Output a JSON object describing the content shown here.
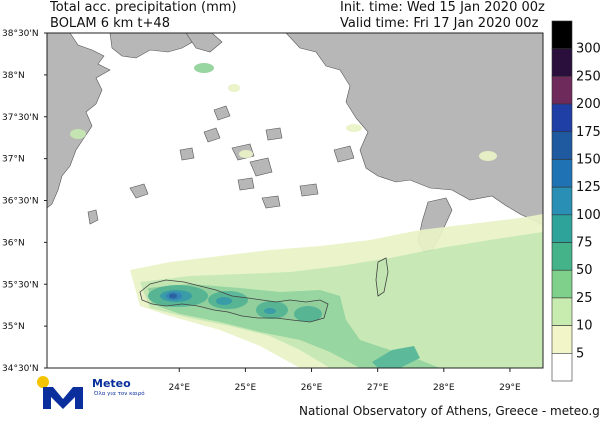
{
  "header": {
    "title_line1": "Total acc. precipitation (mm)",
    "title_line2": "BOLAM 6 km t+48",
    "init_time": "Init. time: Wed 15 Jan 2020 00z",
    "valid_time": "Valid time: Fri 17 Jan 2020 00z"
  },
  "map": {
    "lat_labels": [
      "38°30'N",
      "38°N",
      "37°30'N",
      "37°N",
      "36°30'N",
      "36°N",
      "35°30'N",
      "35°N",
      "34°30'N"
    ],
    "lon_labels": [
      "24°E",
      "25°E",
      "26°E",
      "27°E",
      "28°E",
      "29°E"
    ],
    "lat_range": [
      34.5,
      38.5
    ],
    "lon_range": [
      22.0,
      29.5
    ]
  },
  "colorbar": {
    "levels": [
      "300",
      "250",
      "200",
      "175",
      "150",
      "125",
      "100",
      "75",
      "50",
      "25",
      "10",
      "5"
    ],
    "colors": [
      "#000000",
      "#2a0f3c",
      "#6e2a5a",
      "#1f3fa6",
      "#1f5aa0",
      "#1f73b5",
      "#2a8fb5",
      "#2ea39a",
      "#44b38a",
      "#7fd08a",
      "#c8ecb0",
      "#f2f5c8",
      "#ffffff"
    ]
  },
  "logo": {
    "name": "Meteo",
    "tagline": "Όλα για τον καιρό",
    "colors": {
      "sun": "#f5c400",
      "brand": "#0a2f9c"
    }
  },
  "footer": {
    "credit": "National Observatory of Athens, Greece - meteo.gr"
  },
  "palette": {
    "sea": "#ffffff",
    "land": "#b7b7b7",
    "precip_10": "#e9f3c6",
    "precip_25": "#c4e8b0",
    "precip_50": "#8fd29a",
    "precip_75": "#4fb592",
    "precip_100": "#2f9aa6",
    "precip_125": "#2a7fb8",
    "precip_150": "#1f5a9e"
  }
}
